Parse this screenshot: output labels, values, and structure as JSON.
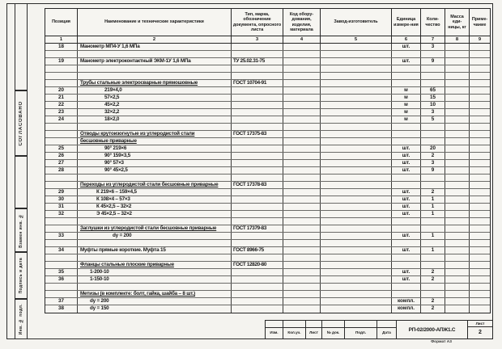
{
  "page": {
    "agreed_stamp": "СОГЛАСОВАНО",
    "margin_labels": [
      "Взамен инв. №",
      "Подпись и дата",
      "Инв. № подл."
    ],
    "format_note": "Формат А3",
    "colors": {
      "paper": "#f4f3ef",
      "ink": "#161616",
      "line": "#2b2b2b"
    }
  },
  "table": {
    "headers": [
      {
        "label": "Позиция",
        "num": "1"
      },
      {
        "label": "Наименование и технические характеристики",
        "num": "2"
      },
      {
        "label": "Тип, марка, обозначение документа, опросного листа",
        "num": "3"
      },
      {
        "label": "Код обору-дования, изделия, материала",
        "num": "4"
      },
      {
        "label": "Завод-изготовитель",
        "num": "5"
      },
      {
        "label": "Единица измере-ния",
        "num": "6"
      },
      {
        "label": "Коли-чество",
        "num": "7"
      },
      {
        "label": "Масса еди-ницы, кг",
        "num": "8"
      },
      {
        "label": "Приме-чание",
        "num": "9"
      }
    ],
    "rows": [
      {
        "pos": "18",
        "name": "Манометр МП4-У  1,6 МПа",
        "unit": "шт.",
        "qty": "3"
      },
      {},
      {
        "pos": "19",
        "name": "Манометр электроконтактный ЭКМ-1У  1,6 МПа",
        "doc": "ТУ 25.02.31-75",
        "unit": "шт.",
        "qty": "9"
      },
      {},
      {},
      {
        "name": "Трубы стальные электросварные прямошовные",
        "doc": "ГОСТ 10704-91",
        "group": true
      },
      {
        "pos": "20",
        "name": "219×4,0",
        "unit": "м",
        "qty": "65",
        "ind": 30
      },
      {
        "pos": "21",
        "name": "57×2,5",
        "unit": "м",
        "qty": "15",
        "ind": 30
      },
      {
        "pos": "22",
        "name": "45×2,2",
        "unit": "м",
        "qty": "10",
        "ind": 30
      },
      {
        "pos": "23",
        "name": "32×2,2",
        "unit": "м",
        "qty": "3",
        "ind": 30
      },
      {
        "pos": "24",
        "name": "18×2,0",
        "unit": "м",
        "qty": "5",
        "ind": 30
      },
      {},
      {
        "name": "Отводы крутоизогнутые из углеродистой стали",
        "doc": "ГОСТ 17375-83",
        "group": true
      },
      {
        "name": "бесшовные приварные",
        "group": true
      },
      {
        "pos": "25",
        "name": "90° 219×6",
        "unit": "шт.",
        "qty": "20",
        "ind": 30
      },
      {
        "pos": "26",
        "name": "90° 159×3,5",
        "unit": "шт.",
        "qty": "2",
        "ind": 30
      },
      {
        "pos": "27",
        "name": "90° 57×3",
        "unit": "шт.",
        "qty": "3",
        "ind": 30
      },
      {
        "pos": "28",
        "name": "90° 45×2,5",
        "unit": "шт.",
        "qty": "9",
        "ind": 30
      },
      {},
      {
        "name": "Переходы из углеродистой стали бесшовные приварные",
        "doc": "ГОСТ 17378-83",
        "group": true
      },
      {
        "pos": "29",
        "name": "К 219×6 – 159×4,5",
        "unit": "шт.",
        "qty": "2",
        "ind": 20
      },
      {
        "pos": "30",
        "name": "К 108×4 – 57×3",
        "unit": "шт.",
        "qty": "1",
        "ind": 20
      },
      {
        "pos": "31",
        "name": "К 45×2,5 – 32×2",
        "unit": "шт.",
        "qty": "1",
        "ind": 20
      },
      {
        "pos": "32",
        "name": "Э 45×2,5 – 32×2",
        "unit": "шт.",
        "qty": "1",
        "ind": 20
      },
      {},
      {
        "name": "Заглушки из углеродистой стали бесшовные приварные",
        "doc": "ГОСТ 17379-83",
        "group": true
      },
      {
        "pos": "33",
        "name": "dу = 200",
        "unit": "шт.",
        "qty": "1",
        "ind": 40
      },
      {},
      {
        "pos": "34",
        "name": "Муфты прямые короткие. Муфта 15",
        "doc": "ГОСТ 8966-75",
        "unit": "шт.",
        "qty": "1"
      },
      {},
      {
        "name": "Фланцы стальные плоские приварные",
        "doc": "ГОСТ 12820-80",
        "group": true
      },
      {
        "pos": "35",
        "name": "1-200-10",
        "unit": "шт.",
        "qty": "2",
        "ind": 12
      },
      {
        "pos": "36",
        "name": "1-150-10",
        "unit": "шт.",
        "qty": "2",
        "ind": 12
      },
      {},
      {
        "name": "Метизы (в комплекте: болт, гайка, шайба – 8 шт.)",
        "group": true
      },
      {
        "pos": "37",
        "name": "dу = 200",
        "unit": "компл.",
        "qty": "2",
        "ind": 12
      },
      {
        "pos": "38",
        "name": "dу = 150",
        "unit": "компл.",
        "qty": "2",
        "ind": 12
      }
    ]
  },
  "titleblock": {
    "cells": [
      "Изм.",
      "Кол.уч.",
      "Лист",
      "№ док.",
      "Подп.",
      "Дата"
    ],
    "doc_number": "РП-02/2000-АПЖ1.С",
    "sheet_label": "Лист",
    "sheet_number": "2"
  }
}
